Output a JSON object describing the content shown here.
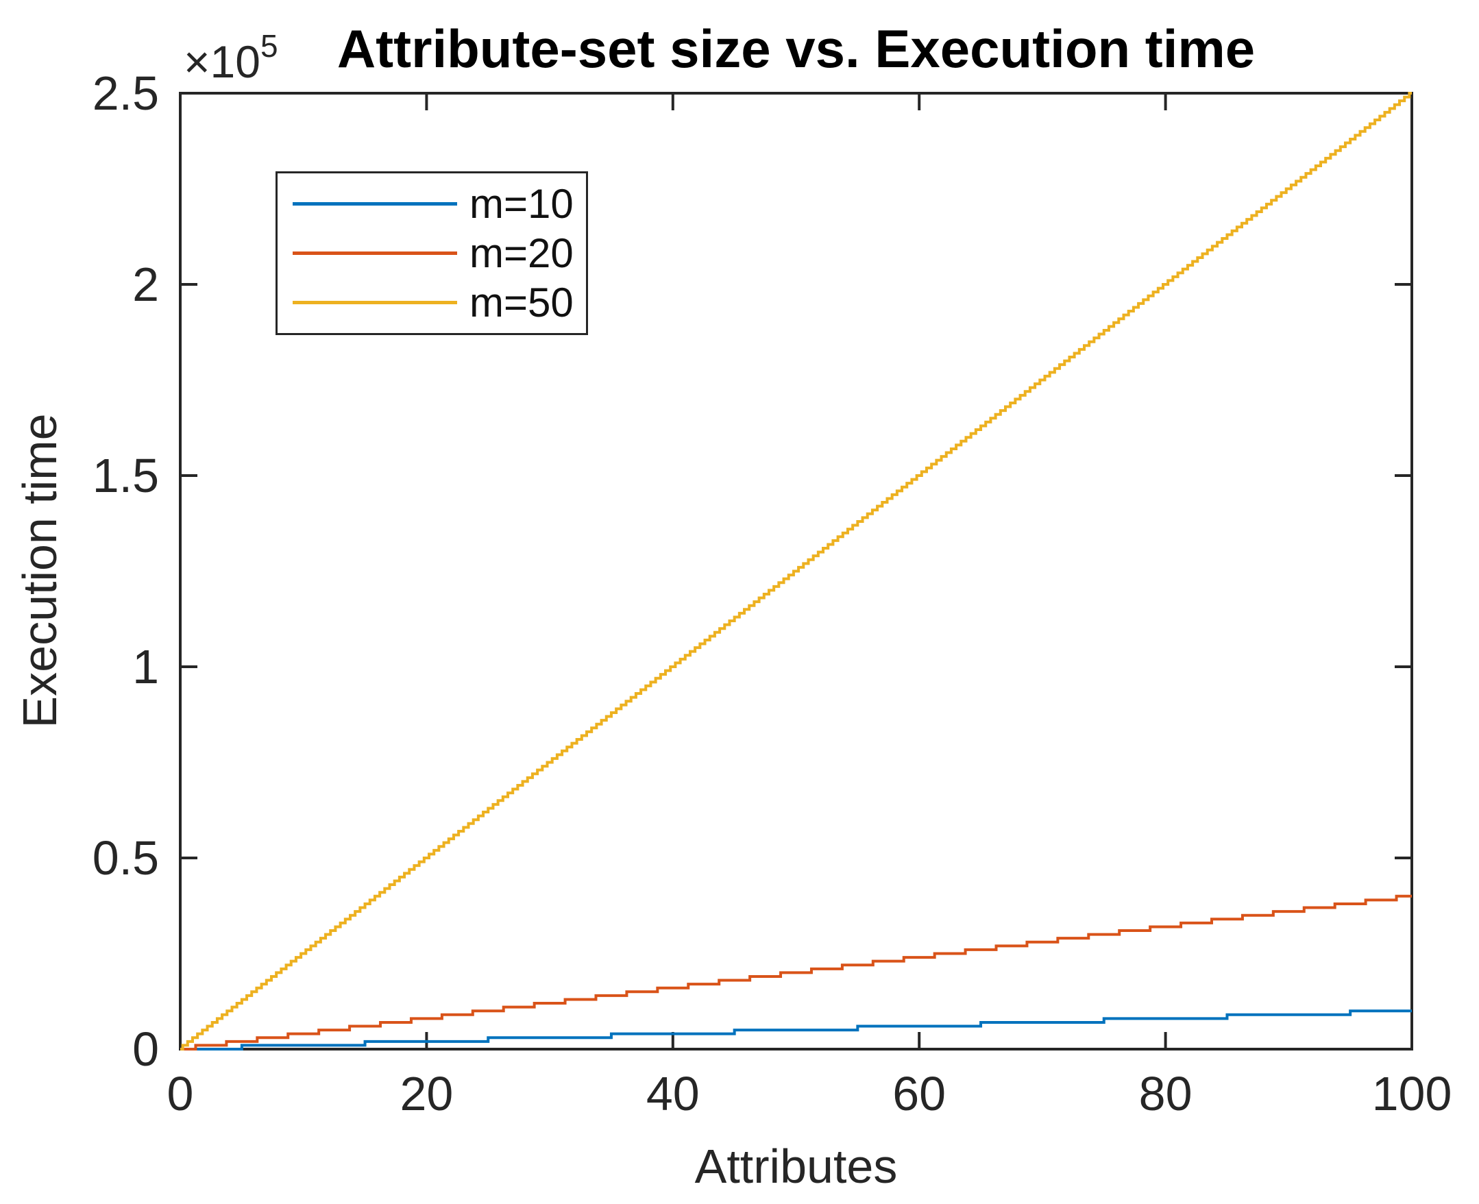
{
  "figure": {
    "background": "#ffffff",
    "axis_color": "#262626",
    "y_multiplier_base": "×10",
    "y_multiplier_exp": "5"
  },
  "chart_data": {
    "type": "line",
    "title": "Attribute-set size vs. Execution time",
    "xlabel": "Attributes",
    "ylabel": "Execution time",
    "xlim": [
      0,
      100
    ],
    "ylim": [
      0,
      250000
    ],
    "grid": false,
    "legend_position": "upper-left-inside",
    "y_axis_multiplier": "×10^5",
    "x_ticks": [
      {
        "value": 0,
        "label": "0"
      },
      {
        "value": 20,
        "label": "20"
      },
      {
        "value": 40,
        "label": "40"
      },
      {
        "value": 60,
        "label": "60"
      },
      {
        "value": 80,
        "label": "80"
      },
      {
        "value": 100,
        "label": "100"
      }
    ],
    "y_ticks": [
      {
        "value": 0,
        "label": "0"
      },
      {
        "value": 50000,
        "label": "0.5"
      },
      {
        "value": 100000,
        "label": "1"
      },
      {
        "value": 150000,
        "label": "1.5"
      },
      {
        "value": 200000,
        "label": "2"
      },
      {
        "value": 250000,
        "label": "2.5"
      }
    ],
    "model": "Execution time ≈ m² × Attributes, drawn as measurement staircase",
    "quantize_step": 1000,
    "series": [
      {
        "name": "m=10",
        "color": "#0072BD",
        "slope_per_attribute": 100,
        "x": [
          0,
          20,
          40,
          60,
          80,
          100
        ],
        "y": [
          0,
          2000,
          4000,
          6000,
          8000,
          10000
        ]
      },
      {
        "name": "m=20",
        "color": "#D95319",
        "slope_per_attribute": 400,
        "x": [
          0,
          20,
          40,
          60,
          80,
          100
        ],
        "y": [
          0,
          8000,
          16000,
          24000,
          32000,
          40000
        ]
      },
      {
        "name": "m=50",
        "color": "#EDB120",
        "slope_per_attribute": 2500,
        "x": [
          0,
          20,
          40,
          60,
          80,
          100
        ],
        "y": [
          0,
          50000,
          100000,
          150000,
          200000,
          250000
        ]
      }
    ]
  }
}
